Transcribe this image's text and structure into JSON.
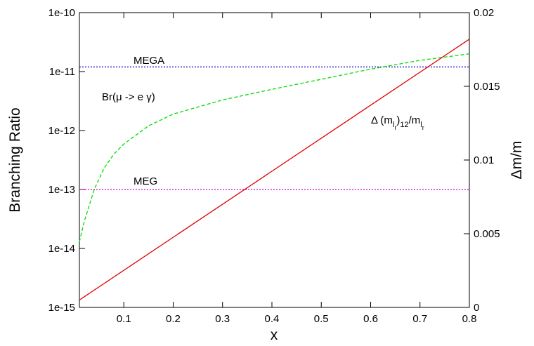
{
  "chart_data": {
    "type": "line",
    "x_label": "x",
    "y_label": "Branching Ratio",
    "y2_label": "Δm/m",
    "xlim": [
      0.01,
      0.8
    ],
    "xticks": [
      0.1,
      0.2,
      0.3,
      0.4,
      0.5,
      0.6,
      0.7,
      0.8
    ],
    "ylim": [
      1e-15,
      1e-10
    ],
    "y_scale": "log",
    "yticks": [
      {
        "value": 1e-15,
        "label": "1e-15"
      },
      {
        "value": 1e-14,
        "label": "1e-14"
      },
      {
        "value": 1e-13,
        "label": "1e-13"
      },
      {
        "value": 1e-12,
        "label": "1e-12"
      },
      {
        "value": 1e-11,
        "label": "1e-11"
      },
      {
        "value": 1e-10,
        "label": "1e-10"
      }
    ],
    "y2lim": [
      0,
      0.02
    ],
    "y2ticks": [
      0,
      0.005,
      0.01,
      0.015,
      0.02
    ],
    "series": [
      {
        "name": "MEGA",
        "color": "#0000c0",
        "dash": "dotted",
        "x": [
          0.01,
          0.8
        ],
        "values": [
          1.2e-11,
          1.2e-11
        ]
      },
      {
        "name": "MEG",
        "color": "#d000d0",
        "dash": "dotted",
        "x": [
          0.01,
          0.8
        ],
        "values": [
          1e-13,
          1e-13
        ]
      },
      {
        "name": "Br(μ -> e γ)",
        "color": "#00dd00",
        "dash": "dashed",
        "x": [
          0.01,
          0.02,
          0.04,
          0.06,
          0.08,
          0.1,
          0.15,
          0.2,
          0.3,
          0.4,
          0.5,
          0.6,
          0.7,
          0.8
        ],
        "values": [
          1.3e-14,
          2.9e-14,
          1e-13,
          2.3e-13,
          4e-13,
          5.9e-13,
          1.2e-12,
          1.9e-12,
          3.3e-12,
          5e-12,
          7.4e-12,
          1.1e-11,
          1.55e-11,
          2e-11
        ]
      },
      {
        "color": "#e00000",
        "dash": "solid",
        "axis": "y2",
        "x": [
          0.01,
          0.8
        ],
        "values": [
          0.0005,
          0.0182
        ]
      }
    ],
    "annotation_parts": [
      "Δ (m",
      "l",
      "r",
      ")",
      "12",
      "/m",
      "l",
      "r"
    ]
  }
}
